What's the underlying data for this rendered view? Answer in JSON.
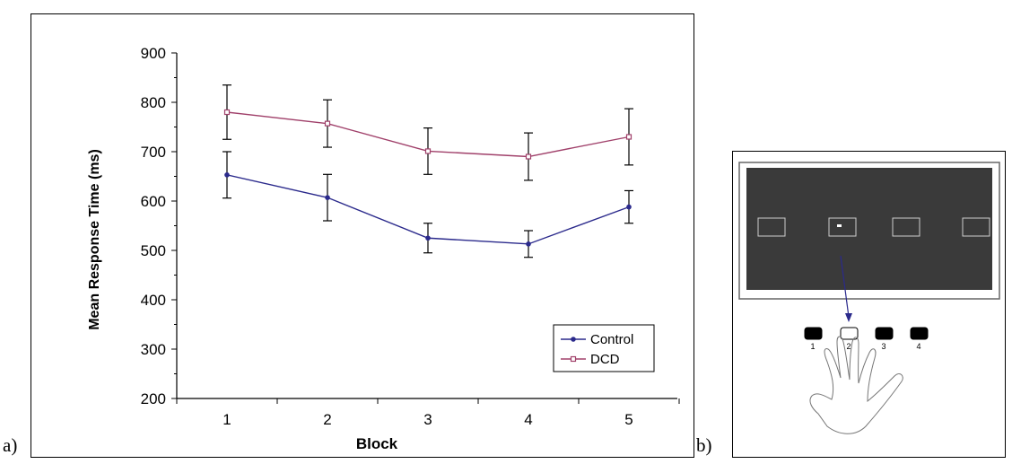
{
  "labels": {
    "a": "a)",
    "b": "b)"
  },
  "chart_data": {
    "type": "line",
    "xlabel": "Block",
    "ylabel": "Mean Response Time (ms)",
    "categories": [
      "1",
      "2",
      "3",
      "4",
      "5"
    ],
    "ylim": [
      200,
      900
    ],
    "yticks": [
      200,
      300,
      400,
      500,
      600,
      700,
      800,
      900
    ],
    "grid": false,
    "legend": "bottom-right",
    "series": [
      {
        "name": "Control",
        "color": "#2b2a8c",
        "marker": "filled-circle",
        "values": [
          653,
          607,
          525,
          513,
          588
        ],
        "error": [
          47,
          47,
          30,
          27,
          33
        ]
      },
      {
        "name": "DCD",
        "color": "#a0406a",
        "marker": "open-square",
        "values": [
          780,
          757,
          701,
          690,
          730
        ],
        "error": [
          55,
          48,
          47,
          48,
          57
        ]
      }
    ]
  },
  "task_diagram": {
    "screen_color": "#3a3a3a",
    "targets": 4,
    "active_target": 2,
    "keys": [
      "1",
      "2",
      "3",
      "4"
    ],
    "arrow_color": "#2b2a8c"
  }
}
